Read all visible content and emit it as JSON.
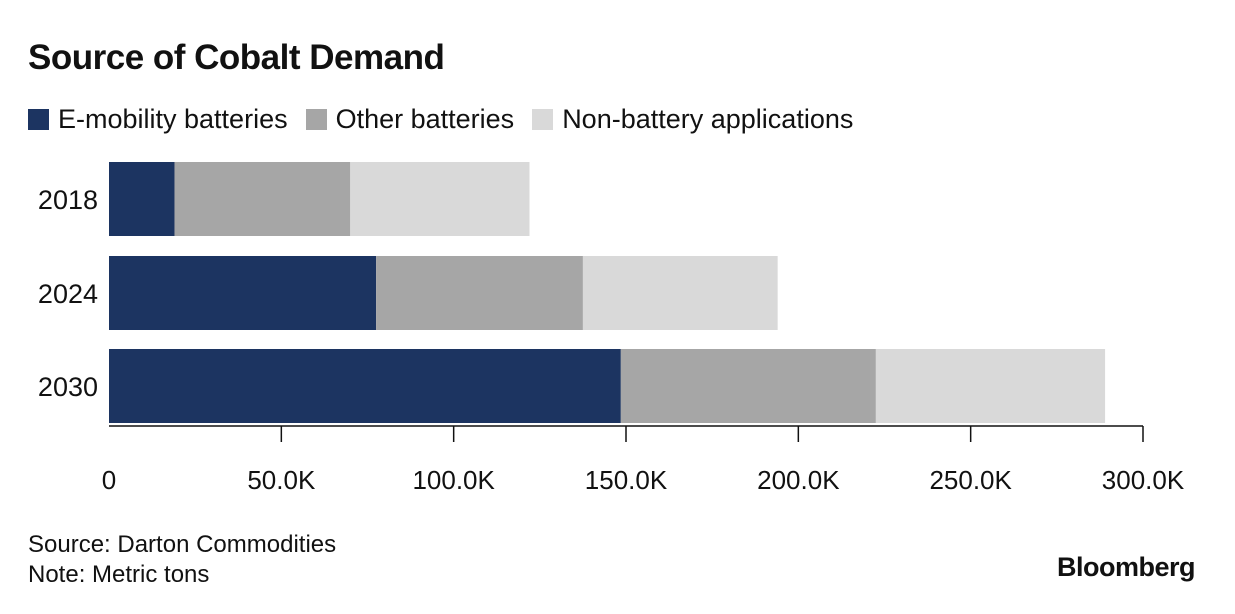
{
  "title": "Source of Cobalt Demand",
  "legend": [
    {
      "label": "E-mobility batteries",
      "color": "#1c3461"
    },
    {
      "label": "Other batteries",
      "color": "#a6a6a6"
    },
    {
      "label": "Non-battery applications",
      "color": "#d9d9d9"
    }
  ],
  "chart_data": {
    "type": "bar",
    "orientation": "horizontal",
    "stacked": true,
    "categories": [
      "2018",
      "2024",
      "2030"
    ],
    "series": [
      {
        "name": "E-mobility batteries",
        "color": "#1c3461",
        "values": [
          19000,
          77500,
          148500
        ]
      },
      {
        "name": "Other batteries",
        "color": "#a6a6a6",
        "values": [
          51000,
          60000,
          74000
        ]
      },
      {
        "name": "Non-battery applications",
        "color": "#d9d9d9",
        "values": [
          52000,
          56500,
          66500
        ]
      }
    ],
    "xlim": [
      0,
      300000
    ],
    "xticks": [
      0,
      50000,
      100000,
      150000,
      200000,
      250000,
      300000
    ],
    "xtick_labels": [
      "0",
      "50.0K",
      "100.0K",
      "150.0K",
      "200.0K",
      "250.0K",
      "300.0K"
    ],
    "title": "Source of Cobalt Demand",
    "xlabel": "",
    "ylabel": ""
  },
  "footer": {
    "source": "Source: Darton Commodities",
    "note": "Note: Metric tons",
    "brand": "Bloomberg"
  }
}
